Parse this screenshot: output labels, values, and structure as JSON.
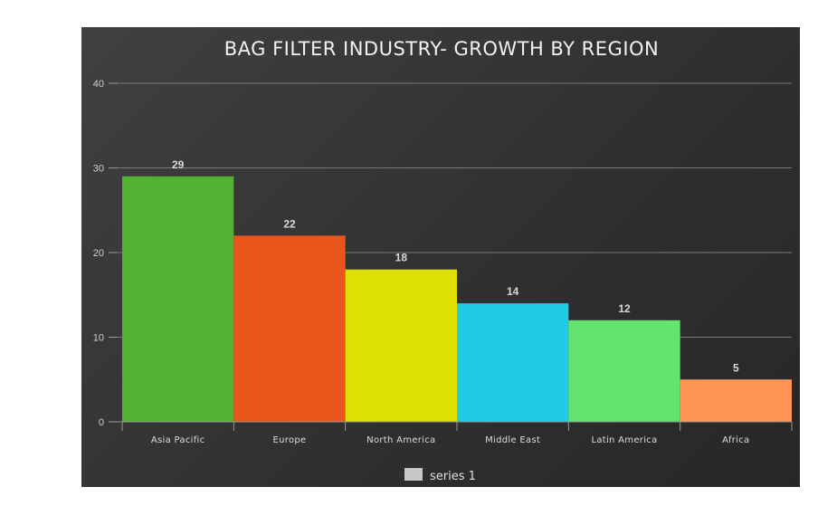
{
  "chart_data": {
    "type": "bar",
    "title": "BAG FILTER INDUSTRY- GROWTH BY REGION",
    "categories": [
      "Asia Pacific",
      "Europe",
      "North America",
      "Middle East",
      "Latin America",
      "Africa"
    ],
    "series": [
      {
        "name": "series 1",
        "values": [
          29,
          22,
          18,
          14,
          12,
          5
        ]
      }
    ],
    "bar_colors": [
      "#52b332",
      "#e9561c",
      "#dde000",
      "#23cae3",
      "#63e470",
      "#ff9655"
    ],
    "ylim": [
      0,
      40
    ],
    "yticks": [
      0,
      10,
      20,
      30,
      40
    ],
    "grid": true,
    "data_labels": true,
    "legend": {
      "position": "bottom",
      "swatch_color": "#c8c8c8"
    },
    "colors": {
      "background": "#333333",
      "grid": "#7a7a7a",
      "axis": "#9a9a9a",
      "text": "#e0e0e0"
    }
  }
}
